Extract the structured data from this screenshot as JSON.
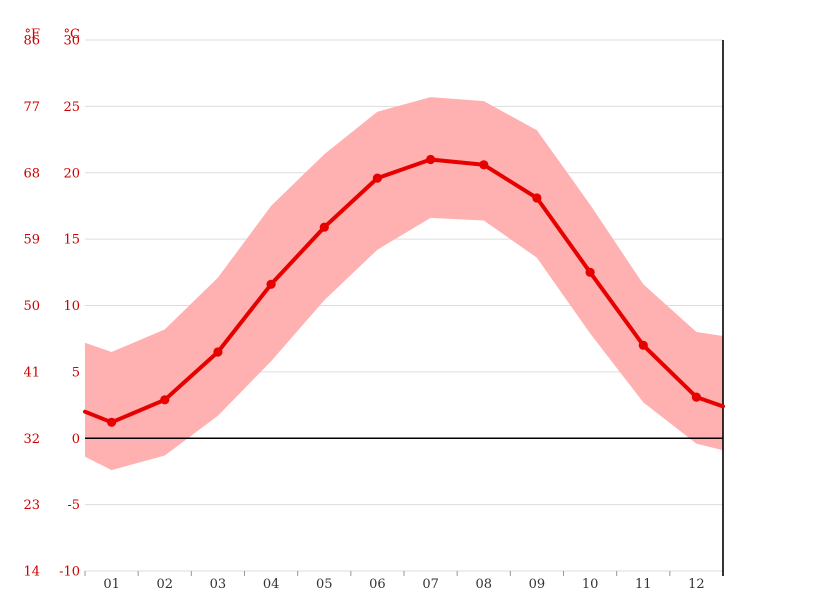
{
  "units": {
    "fahrenheit": "°F",
    "celsius": "°C"
  },
  "chart_data": {
    "type": "line",
    "title": "",
    "xlabel": "",
    "ylabel": "",
    "x_labels": [
      "01",
      "02",
      "03",
      "04",
      "05",
      "06",
      "07",
      "08",
      "09",
      "10",
      "11",
      "12"
    ],
    "ylim": [
      -10,
      30
    ],
    "yticks": [
      {
        "value": 30,
        "c": "30",
        "f": "86"
      },
      {
        "value": 25,
        "c": "25",
        "f": "77"
      },
      {
        "value": 20,
        "c": "20",
        "f": "68"
      },
      {
        "value": 15,
        "c": "15",
        "f": "59"
      },
      {
        "value": 10,
        "c": "10",
        "f": "50"
      },
      {
        "value": 5,
        "c": "5",
        "f": "41"
      },
      {
        "value": 0,
        "c": "0",
        "f": "32"
      },
      {
        "value": -5,
        "c": "-5",
        "f": "23"
      },
      {
        "value": -10,
        "c": "-10",
        "f": "14"
      }
    ],
    "series": [
      {
        "name": "mean_temperature_c",
        "values": [
          1.2,
          2.9,
          6.5,
          11.6,
          15.9,
          19.6,
          21.0,
          20.6,
          18.1,
          12.5,
          7.0,
          3.1
        ],
        "edge_left": 2.0,
        "edge_right": 2.4
      },
      {
        "name": "max_temperature_c",
        "values": [
          6.5,
          8.2,
          12.1,
          17.5,
          21.4,
          24.6,
          25.7,
          25.4,
          23.2,
          17.6,
          11.6,
          8.0
        ],
        "edge_left": 7.2,
        "edge_right": 7.7
      },
      {
        "name": "min_temperature_c",
        "values": [
          -2.4,
          -1.3,
          1.7,
          5.8,
          10.4,
          14.2,
          16.6,
          16.4,
          13.6,
          7.9,
          2.7,
          -0.4
        ],
        "edge_left": -1.4,
        "edge_right": -0.9
      }
    ],
    "colors": {
      "mean_line": "#e60000",
      "band": "#ffb0b0",
      "axis_text_red": "#cc0000",
      "month_text": "#333333",
      "grid": "#dddddd",
      "zero_line": "#000000",
      "axis_line": "#000000",
      "tick": "#999999"
    },
    "legend": "none",
    "grid": "horizontal"
  }
}
